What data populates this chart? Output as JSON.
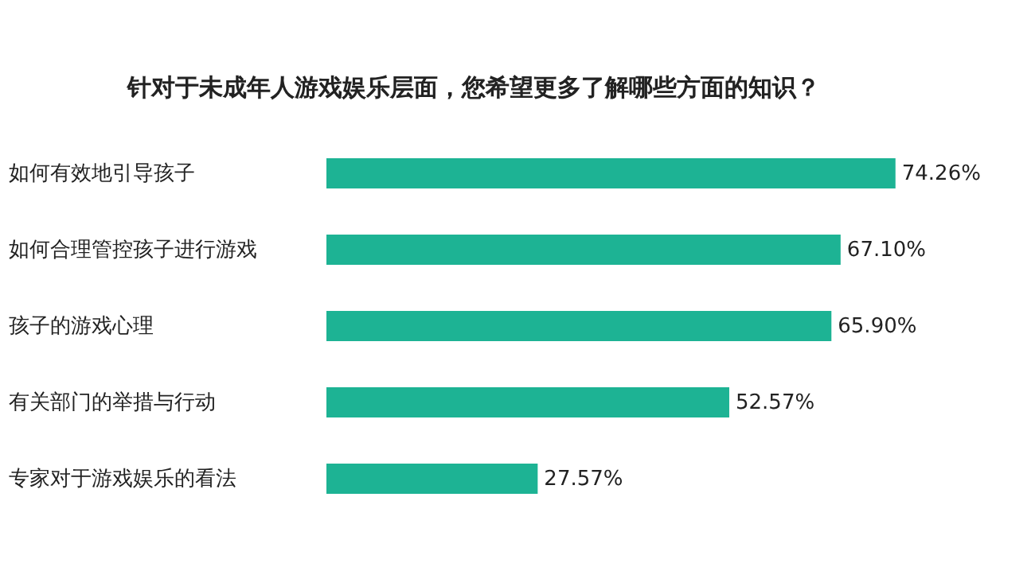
{
  "chart_data": {
    "type": "bar",
    "orientation": "horizontal",
    "title": "针对于未成年人游戏娱乐层面，您希望更多了解哪些方面的知识？",
    "categories": [
      "如何有效地引导孩子",
      "如何合理管控孩子进行游戏",
      "孩子的游戏心理",
      "有关部门的举措与行动",
      "专家对于游戏娱乐的看法"
    ],
    "values": [
      74.26,
      67.1,
      65.9,
      52.57,
      27.57
    ],
    "value_labels": [
      "74.26%",
      "67.10%",
      "65.90%",
      "52.57%",
      "27.57%"
    ],
    "color": "#1db394"
  }
}
